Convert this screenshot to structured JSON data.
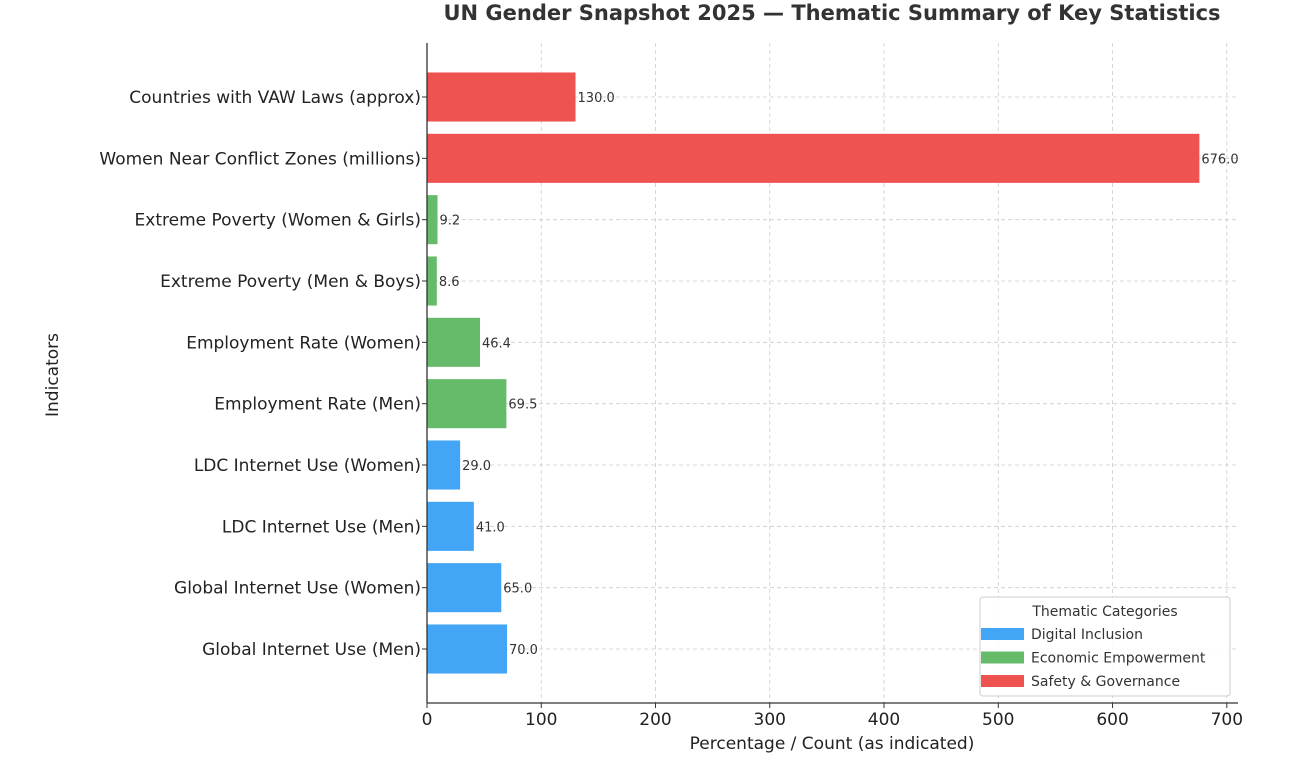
{
  "chart_data": {
    "type": "bar",
    "orientation": "horizontal",
    "title": "UN Gender Snapshot 2025 — Thematic Summary of Key Statistics",
    "xlabel": "Percentage / Count (as indicated)",
    "ylabel": "Indicators",
    "xlim": [
      0,
      709.8
    ],
    "xticks": [
      0,
      100,
      200,
      300,
      400,
      500,
      600,
      700
    ],
    "grid": true,
    "legend": {
      "title": "Thematic Categories",
      "placement": "bottom-right",
      "entries": [
        {
          "name": "Digital Inclusion",
          "color": "#42A5F5"
        },
        {
          "name": "Economic Empowerment",
          "color": "#66BB6A"
        },
        {
          "name": "Safety & Governance",
          "color": "#EF5350"
        }
      ]
    },
    "categories": [
      "Countries with VAW Laws (approx)",
      "Women Near Conflict Zones (millions)",
      "Extreme Poverty (Women & Girls)",
      "Extreme Poverty (Men & Boys)",
      "Employment Rate (Women)",
      "Employment Rate (Men)",
      "LDC Internet Use (Women)",
      "LDC Internet Use (Men)",
      "Global Internet Use (Women)",
      "Global Internet Use (Men)"
    ],
    "values": [
      130.0,
      676.0,
      9.2,
      8.6,
      46.4,
      69.5,
      29.0,
      41.0,
      65.0,
      70.0
    ],
    "value_labels": [
      "130.0",
      "676.0",
      "9.2",
      "8.6",
      "46.4",
      "69.5",
      "29.0",
      "41.0",
      "65.0",
      "70.0"
    ],
    "groups": [
      "Safety & Governance",
      "Safety & Governance",
      "Economic Empowerment",
      "Economic Empowerment",
      "Economic Empowerment",
      "Economic Empowerment",
      "Digital Inclusion",
      "Digital Inclusion",
      "Digital Inclusion",
      "Digital Inclusion"
    ]
  }
}
